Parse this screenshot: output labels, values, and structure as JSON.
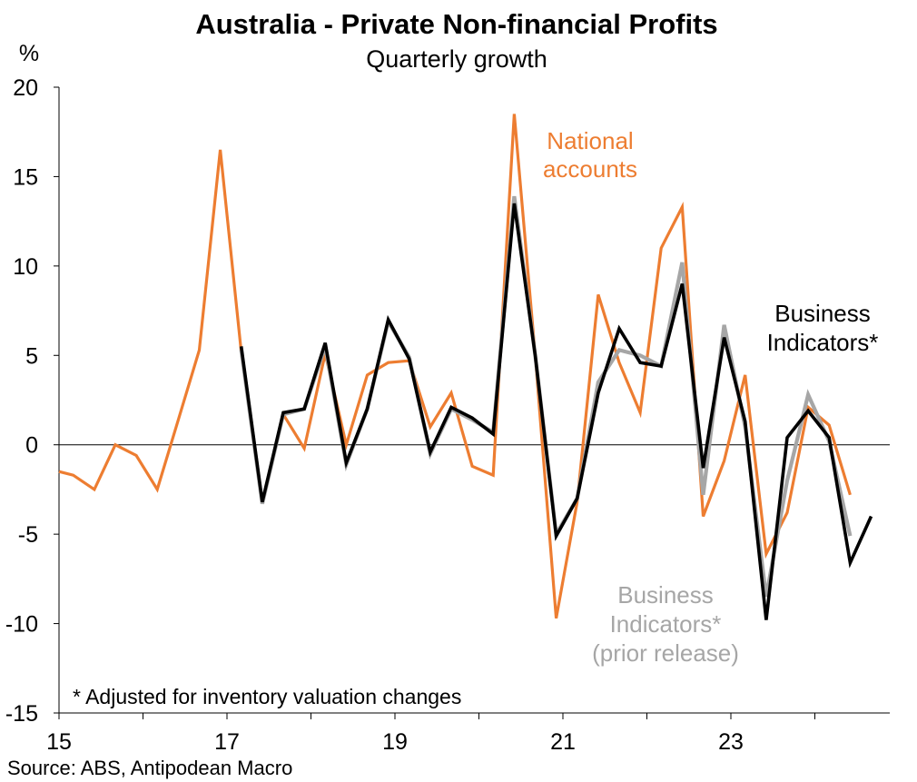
{
  "chart_data": {
    "type": "line",
    "title": "Australia - Private Non-financial Profits",
    "subtitle": "Quarterly growth",
    "ylabel": "%",
    "xlabel": "",
    "ylim": [
      -15,
      20
    ],
    "yticks": [
      -15,
      -10,
      -5,
      0,
      5,
      10,
      15,
      20
    ],
    "xlim": [
      2015.0,
      2025.0
    ],
    "xticks": [
      {
        "value": 2015,
        "label": "15"
      },
      {
        "value": 2017,
        "label": "17"
      },
      {
        "value": 2019,
        "label": "19"
      },
      {
        "value": 2021,
        "label": "21"
      },
      {
        "value": 2023,
        "label": "23"
      }
    ],
    "grid": false,
    "series": [
      {
        "name": "National accounts",
        "color": "#ED7D31",
        "x": [
          2015.0,
          2015.17,
          2015.42,
          2015.67,
          2015.92,
          2016.17,
          2016.42,
          2016.67,
          2016.92,
          2017.17,
          2017.42,
          2017.67,
          2017.92,
          2018.17,
          2018.42,
          2018.67,
          2018.92,
          2019.17,
          2019.42,
          2019.67,
          2019.92,
          2020.17,
          2020.42,
          2020.67,
          2020.92,
          2021.17,
          2021.42,
          2021.67,
          2021.92,
          2022.17,
          2022.42,
          2022.67,
          2022.92,
          2023.17,
          2023.42,
          2023.67,
          2023.92,
          2024.17,
          2024.42
        ],
        "values": [
          -1.5,
          -1.7,
          -2.5,
          0.0,
          -0.6,
          -2.5,
          1.4,
          5.3,
          16.5,
          5.2,
          -3.2,
          1.7,
          -0.2,
          5.1,
          0.0,
          3.9,
          4.6,
          4.7,
          1.0,
          2.9,
          -1.2,
          -1.7,
          18.5,
          5.0,
          -9.7,
          -3.2,
          8.4,
          4.6,
          1.8,
          11.0,
          13.3,
          -4.0,
          -0.9,
          3.9,
          -6.1,
          -3.8,
          2.1,
          1.1,
          -2.8
        ]
      },
      {
        "name": "Business Indicators*",
        "color": "#000000",
        "x": [
          2017.17,
          2017.42,
          2017.67,
          2017.92,
          2018.17,
          2018.42,
          2018.67,
          2018.92,
          2019.17,
          2019.42,
          2019.67,
          2019.92,
          2020.17,
          2020.42,
          2020.67,
          2020.92,
          2021.17,
          2021.42,
          2021.67,
          2021.92,
          2022.17,
          2022.42,
          2022.67,
          2022.92,
          2023.17,
          2023.42,
          2023.67,
          2023.92,
          2024.17,
          2024.42,
          2024.67
        ],
        "values": [
          5.5,
          -3.2,
          1.8,
          2.0,
          5.7,
          -1.0,
          2.0,
          7.0,
          4.8,
          -0.4,
          2.1,
          1.5,
          0.6,
          13.5,
          5.0,
          -5.1,
          -3.0,
          2.9,
          6.5,
          4.6,
          4.4,
          9.0,
          -1.3,
          6.0,
          1.3,
          -9.8,
          0.4,
          1.9,
          0.4,
          -6.6,
          -4.0
        ]
      },
      {
        "name": "Business Indicators* (prior release)",
        "color": "#A6A6A6",
        "x": [
          2017.17,
          2017.42,
          2017.67,
          2017.92,
          2018.17,
          2018.42,
          2018.67,
          2018.92,
          2019.17,
          2019.42,
          2019.67,
          2019.92,
          2020.17,
          2020.42,
          2020.67,
          2020.92,
          2021.17,
          2021.42,
          2021.67,
          2021.92,
          2022.17,
          2022.42,
          2022.67,
          2022.92,
          2023.17,
          2023.42,
          2023.67,
          2023.92,
          2024.17,
          2024.42
        ],
        "values": [
          5.3,
          -3.3,
          1.7,
          2.0,
          5.5,
          -1.1,
          2.0,
          6.9,
          4.9,
          -0.5,
          2.0,
          1.4,
          0.7,
          13.9,
          5.0,
          -5.0,
          -3.0,
          3.5,
          5.3,
          5.0,
          4.4,
          10.2,
          -2.8,
          6.7,
          1.0,
          -8.5,
          -2.0,
          2.8,
          0.2,
          -5.1
        ]
      }
    ],
    "annotations": [
      {
        "lines": [
          "National",
          "accounts"
        ],
        "color": "#ED7D31"
      },
      {
        "lines": [
          "Business",
          "Indicators*"
        ],
        "color": "#000000"
      },
      {
        "lines": [
          "Business",
          "Indicators*",
          "(prior release)"
        ],
        "color": "#A6A6A6"
      }
    ],
    "note": "* Adjusted for inventory valuation changes",
    "source": "Source: ABS, Antipodean Macro"
  }
}
